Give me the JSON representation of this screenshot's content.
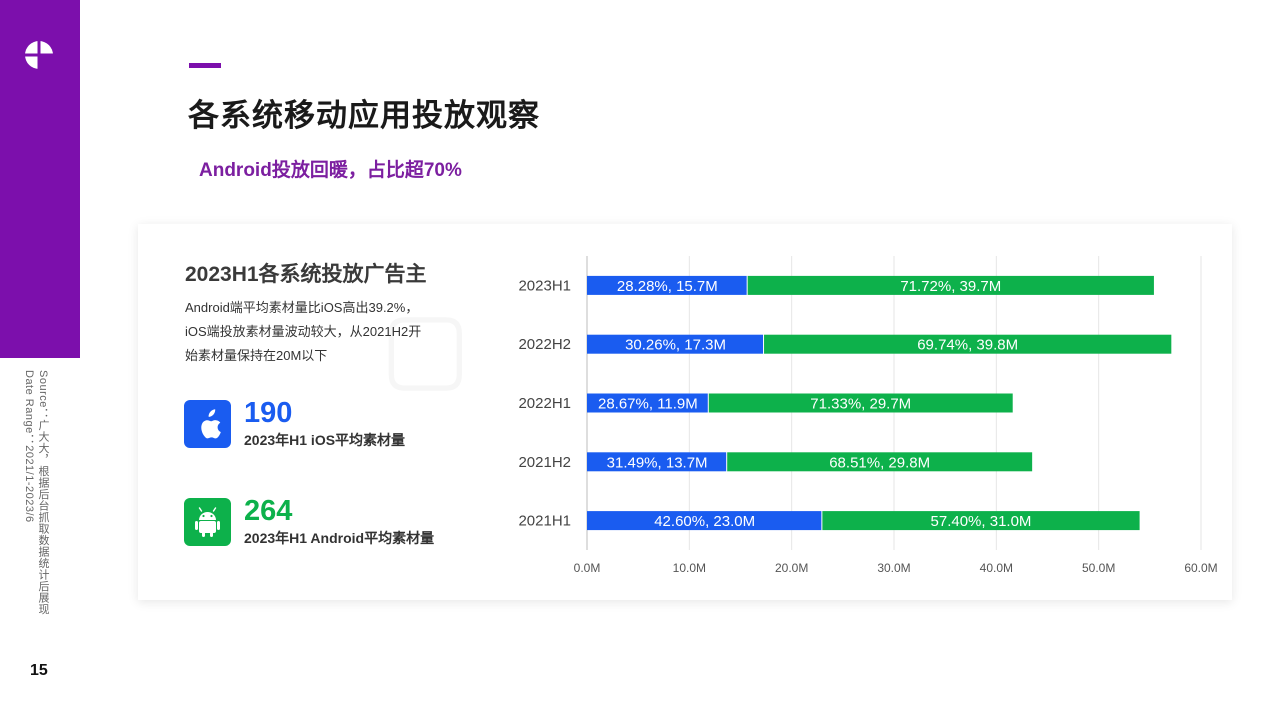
{
  "page": {
    "title": "各系统移动应用投放观察",
    "subtitle": "Android投放回暖，占比超70%",
    "page_number": "15",
    "source_line1": "Source：广大大，根据后台抓取数据统计后展现",
    "source_line2": "Date Range：2021/1-2023/6",
    "brand_color": "#7c0fac"
  },
  "panel": {
    "title": "2023H1各系统投放广告主",
    "desc_lines": [
      "Android端平均素材量比iOS高出39.2%，",
      "iOS端投放素材量波动较大，从2021H2开",
      "始素材量保持在20M以下"
    ],
    "stats": [
      {
        "value": "190",
        "label": "2023年H1 iOS平均素材量",
        "icon": "apple-icon",
        "color": "#1a5cf0"
      },
      {
        "value": "264",
        "label": "2023年H1 Android平均素材量",
        "icon": "android-icon",
        "color": "#0db14b"
      }
    ]
  },
  "chart_data": {
    "type": "bar",
    "orientation": "horizontal",
    "stacked": true,
    "categories": [
      "2023H1",
      "2022H2",
      "2022H1",
      "2021H2",
      "2021H1"
    ],
    "series": [
      {
        "color": "#1a5cf0",
        "values": [
          15.7,
          17.3,
          11.9,
          13.7,
          23.0
        ],
        "labels": [
          "28.28%, 15.7M",
          "30.26%, 17.3M",
          "28.67%, 11.9M",
          "31.49%, 13.7M",
          "42.60%, 23.0M"
        ]
      },
      {
        "color": "#0db14b",
        "values": [
          39.7,
          39.8,
          29.7,
          29.8,
          31.0
        ],
        "labels": [
          "71.72%, 39.7M",
          "69.74%, 39.8M",
          "71.33%, 29.7M",
          "68.51%, 29.8M",
          "57.40%, 31.0M"
        ]
      }
    ],
    "xlim": [
      0,
      60
    ],
    "x_ticks": [
      0,
      10,
      20,
      30,
      40,
      50,
      60
    ],
    "x_tick_labels": [
      "0.0M",
      "10.0M",
      "20.0M",
      "30.0M",
      "40.0M",
      "50.0M",
      "60.0M"
    ],
    "grid": true,
    "legend": "none"
  }
}
